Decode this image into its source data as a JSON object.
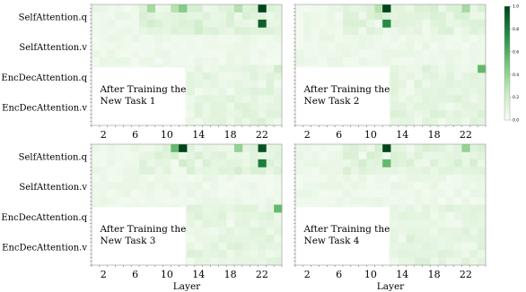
{
  "chart_data": [
    {
      "type": "heatmap",
      "title": "",
      "annotation": [
        "After Training the",
        "New Task 1"
      ],
      "y_labels": [
        "SelfAttention.q",
        "SelfAttention.v",
        "EncDecAttention.q",
        "EncDecAttention.v"
      ],
      "x_ticks": [
        "2",
        "6",
        "10",
        "14",
        "18",
        "22"
      ],
      "xlabel": "",
      "colorbar": {
        "min": 0,
        "max": 1,
        "ticks": [
          "0.0",
          "0.2",
          "0.4",
          "0.6",
          "0.8",
          "1.0"
        ]
      },
      "hot_cells": [
        {
          "layer": 8,
          "row": "SelfAttention.q",
          "value": 0.35
        },
        {
          "layer": 11,
          "row": "SelfAttention.q",
          "value": 0.3
        },
        {
          "layer": 12,
          "row": "SelfAttention.q",
          "value": 0.45
        },
        {
          "layer": 19,
          "row": "SelfAttention.q",
          "value": 0.3
        },
        {
          "layer": 22,
          "row": "SelfAttention.q",
          "value": 1.0
        },
        {
          "layer": 22,
          "row": "SelfAttention.q",
          "value": 0.9
        },
        {
          "layer": 24,
          "row": "EncDecAttention.q",
          "value": 0.2
        }
      ]
    },
    {
      "type": "heatmap",
      "title": "",
      "annotation": [
        "After Training the",
        "New Task 2"
      ],
      "y_labels": [],
      "x_ticks": [
        "2",
        "6",
        "10",
        "14",
        "18",
        "22"
      ],
      "xlabel": "",
      "colorbar": {
        "min": 0,
        "max": 1,
        "ticks": [
          "0.0",
          "0.2",
          "0.4",
          "0.6",
          "0.8",
          "1.0"
        ]
      },
      "hot_cells": [
        {
          "layer": 11,
          "row": "SelfAttention.q",
          "value": 0.3
        },
        {
          "layer": 12,
          "row": "SelfAttention.q",
          "value": 1.0
        },
        {
          "layer": 12,
          "row": "SelfAttention.q",
          "value": 0.75
        },
        {
          "layer": 22,
          "row": "SelfAttention.q",
          "value": 0.35
        },
        {
          "layer": 24,
          "row": "EncDecAttention.q",
          "value": 0.55
        }
      ]
    },
    {
      "type": "heatmap",
      "title": "",
      "annotation": [
        "After Training the",
        "New Task 3"
      ],
      "y_labels": [
        "SelfAttention.q",
        "SelfAttention.v",
        "EncDecAttention.q",
        "EncDecAttention.v"
      ],
      "x_ticks": [
        "2",
        "6",
        "10",
        "14",
        "18",
        "22"
      ],
      "xlabel": "Layer",
      "colorbar": null,
      "hot_cells": [
        {
          "layer": 11,
          "row": "SelfAttention.q",
          "value": 0.55
        },
        {
          "layer": 12,
          "row": "SelfAttention.q",
          "value": 1.0
        },
        {
          "layer": 19,
          "row": "SelfAttention.q",
          "value": 0.4
        },
        {
          "layer": 22,
          "row": "SelfAttention.q",
          "value": 0.95
        },
        {
          "layer": 22,
          "row": "SelfAttention.q",
          "value": 0.8
        },
        {
          "layer": 24,
          "row": "EncDecAttention.q",
          "value": 0.55
        }
      ]
    },
    {
      "type": "heatmap",
      "title": "",
      "annotation": [
        "After Training the",
        "New Task 4"
      ],
      "y_labels": [],
      "x_ticks": [
        "2",
        "6",
        "10",
        "14",
        "18",
        "22"
      ],
      "xlabel": "Layer",
      "colorbar": {
        "min": 0,
        "max": 1,
        "ticks": [
          "0.0",
          "0.2",
          "0.4",
          "0.6",
          "0.8",
          "1.0"
        ]
      },
      "hot_cells": [
        {
          "layer": 12,
          "row": "SelfAttention.q",
          "value": 1.0
        },
        {
          "layer": 12,
          "row": "SelfAttention.q",
          "value": 0.55
        },
        {
          "layer": 22,
          "row": "SelfAttention.q",
          "value": 0.4
        }
      ]
    }
  ]
}
